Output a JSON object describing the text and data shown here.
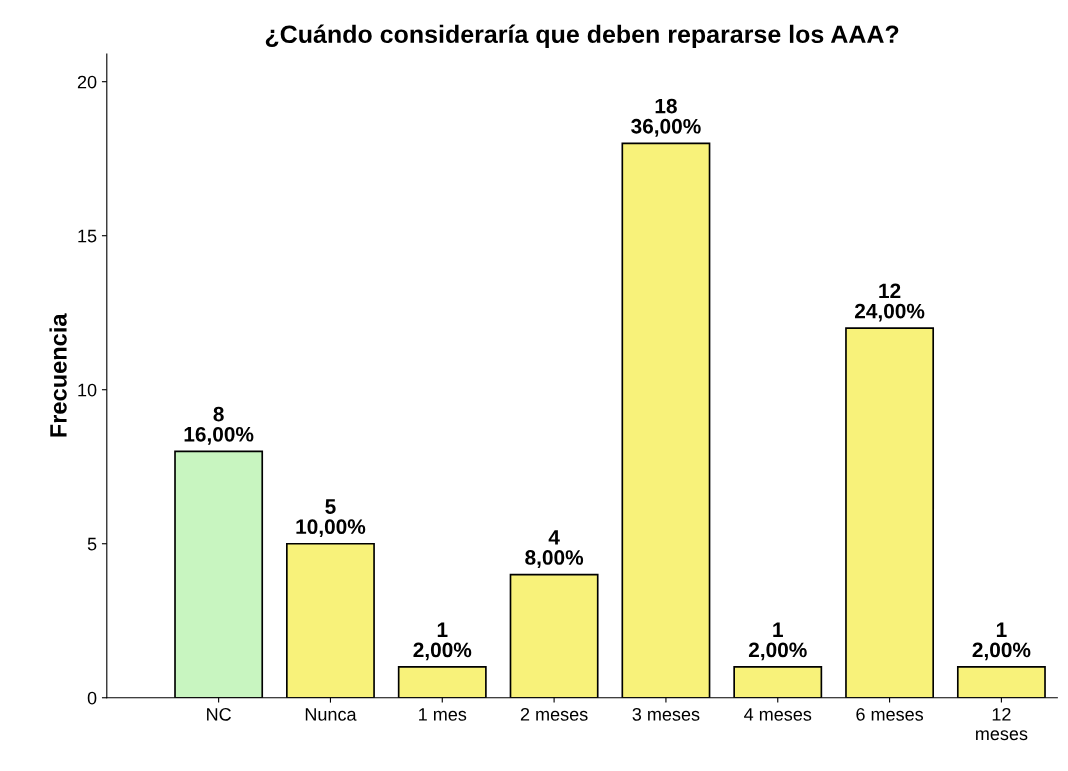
{
  "chart_data": {
    "type": "bar",
    "title": "¿Cuándo consideraría que deben repararse los AAA?",
    "ylabel": "Frecuencia",
    "categories": [
      "NC",
      "Nunca",
      "1 mes",
      "2 meses",
      "3 meses",
      "4 meses",
      "6 meses",
      "12\nmeses"
    ],
    "values": [
      8,
      5,
      1,
      4,
      18,
      1,
      12,
      1
    ],
    "colors": [
      "#c8f5c0",
      "#f8f27a",
      "#f8f27a",
      "#f8f27a",
      "#f8f27a",
      "#f8f27a",
      "#f8f27a",
      "#f8f27a"
    ],
    "value_labels": [
      "8\n16,00%",
      "5\n10,00%",
      "1\n2,00%",
      "4\n8,00%",
      "18\n36,00%",
      "1\n2,00%",
      "12\n24,00%",
      "1\n2,00%"
    ],
    "ylim": [
      0,
      20.9
    ],
    "yticks": [
      0,
      5,
      10,
      15,
      20
    ],
    "grid": false,
    "legend": false
  }
}
